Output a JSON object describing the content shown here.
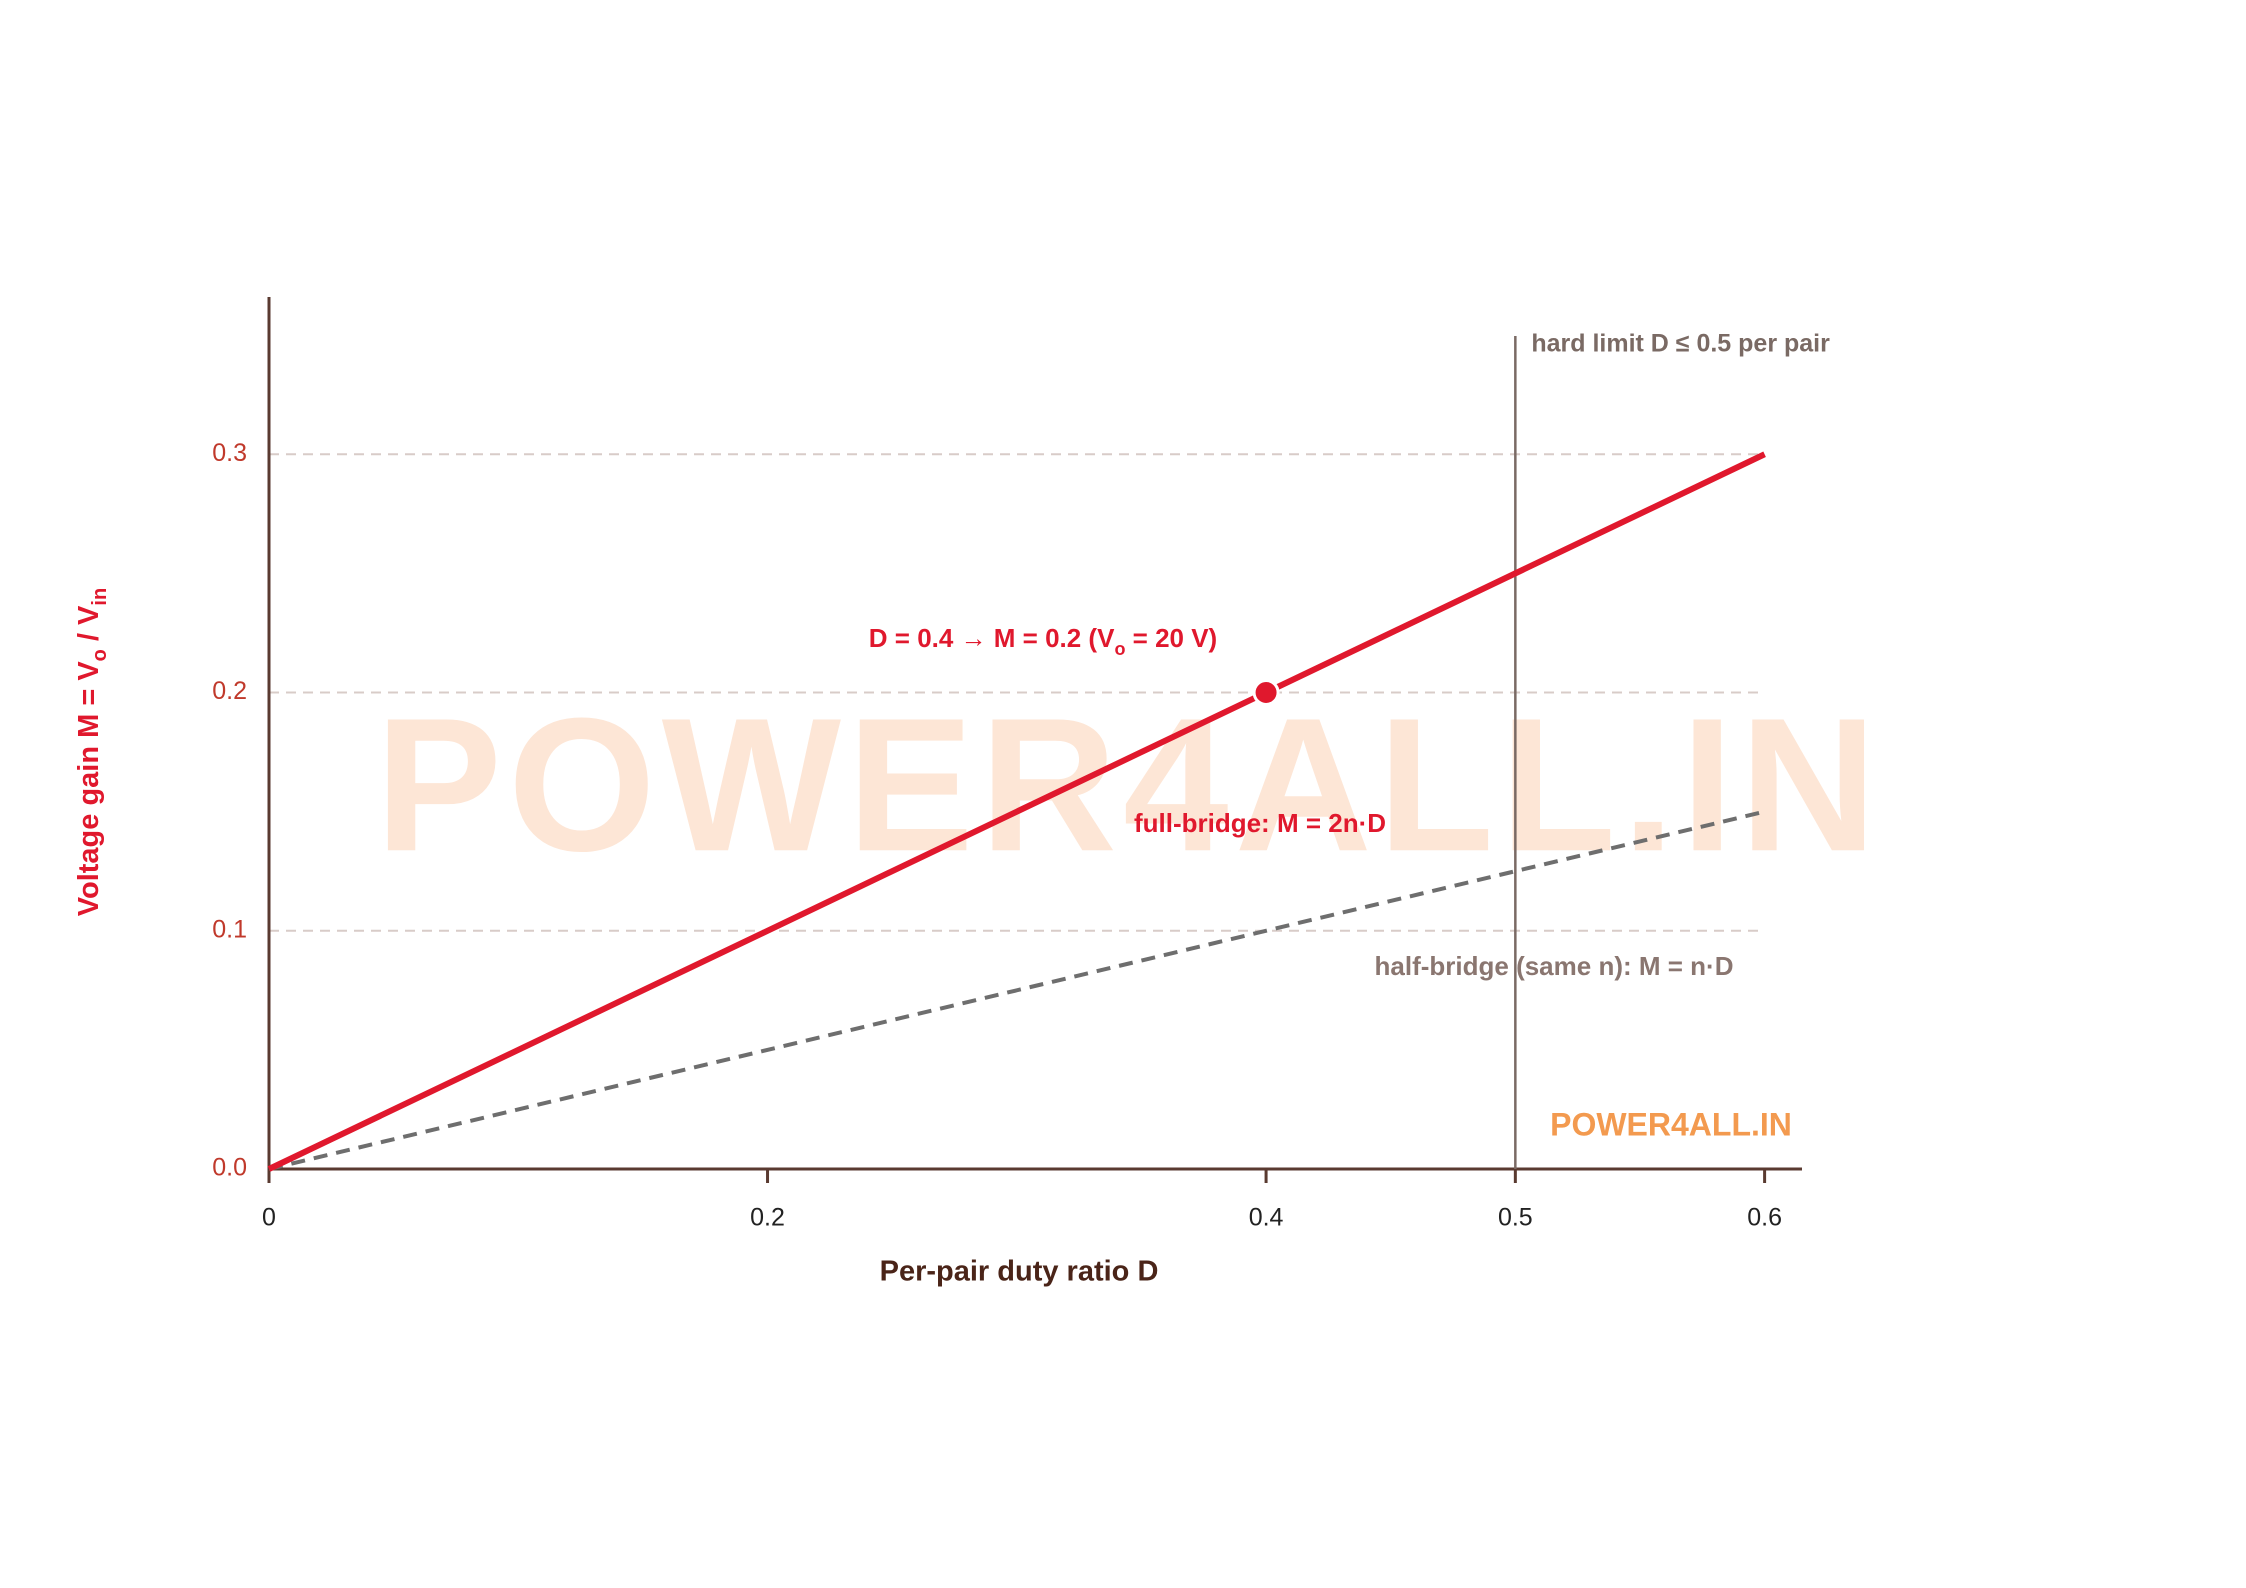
{
  "chart_data": {
    "type": "line",
    "xlabel": "Per-pair duty ratio D",
    "ylabel": {
      "parts": [
        "Voltage gain M = V",
        "o",
        " / V",
        "in"
      ]
    },
    "x": [
      0,
      0.6
    ],
    "series": [
      {
        "name": "full-bridge: M = 2n·D",
        "color": "#e0182d",
        "style": "solid",
        "values": [
          0,
          0.3
        ]
      },
      {
        "name": "half-bridge (same n): M = n·D",
        "color": "#6e6e6e",
        "style": "dashed",
        "values": [
          0,
          0.15
        ]
      }
    ],
    "highlight_point": {
      "x": 0.4,
      "y": 0.2,
      "color": "#e0182d",
      "label_parts": [
        "D = 0.4 → M = 0.2 (V",
        "o",
        " = 20 V)"
      ]
    },
    "limit_line": {
      "x": 0.5,
      "label": "hard limit D ≤ 0.5 per pair",
      "color": "#7a6a64"
    },
    "xlim": [
      0,
      0.615
    ],
    "ylim": [
      0,
      0.366
    ],
    "xticks": [
      0,
      0.2,
      0.4,
      0.5,
      0.6
    ],
    "yticks": [
      {
        "value": 0,
        "label": "0.0"
      },
      0.1,
      0.2,
      0.3
    ],
    "grid": true,
    "watermark": "POWER4ALL.IN",
    "logo": "POWER4ALL.IN"
  }
}
